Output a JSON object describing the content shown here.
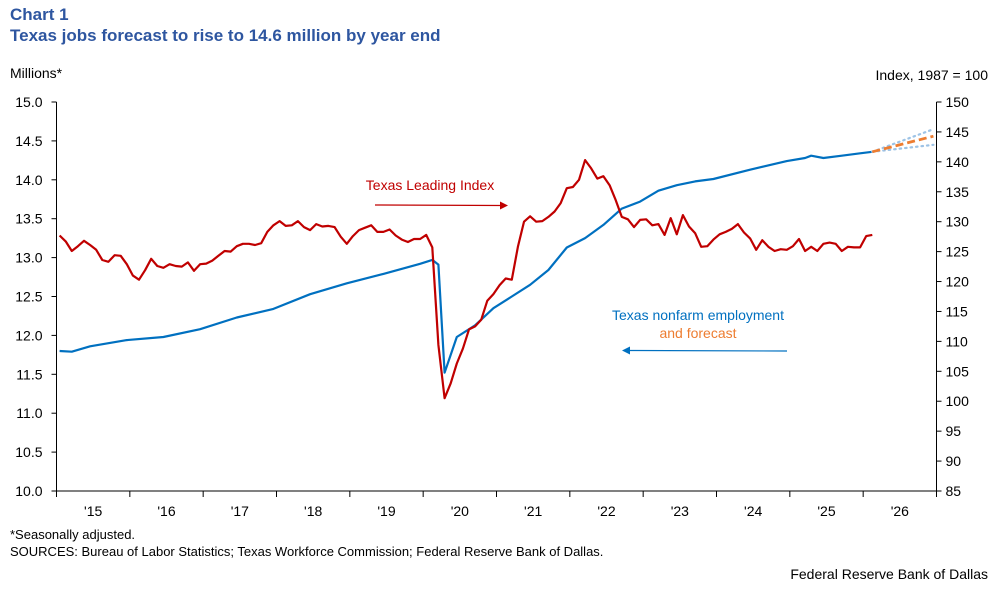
{
  "header": {
    "chart_label": "Chart 1",
    "title": "Texas jobs forecast to rise to 14.6 million by year end"
  },
  "footer": {
    "note": "*Seasonally adjusted.",
    "sources": "SOURCES: Bureau of Labor Statistics; Texas Workforce Commission; Federal Reserve Bank of Dallas.",
    "credit": "Federal Reserve Bank of Dallas"
  },
  "colors": {
    "title": "#2E56A0",
    "employment": "#0070C0",
    "leading_index": "#C00000",
    "forecast": "#ED7D31",
    "forecast_band": "#9DC3E6"
  },
  "chart_data": {
    "type": "line",
    "title": "Texas jobs forecast to rise to 14.6 million by year end",
    "left_axis": {
      "label": "Millions*",
      "range": [
        10.0,
        15.0
      ],
      "ticks": [
        "10.0",
        "10.5",
        "11.0",
        "11.5",
        "12.0",
        "12.5",
        "13.0",
        "13.5",
        "14.0",
        "14.5",
        "15.0"
      ]
    },
    "right_axis": {
      "label": "Index,  1987 = 100",
      "range": [
        85,
        150
      ],
      "ticks": [
        "85",
        "90",
        "95",
        "100",
        "105",
        "110",
        "115",
        "120",
        "125",
        "130",
        "135",
        "140",
        "145",
        "150"
      ]
    },
    "x_axis": {
      "range": [
        "2015-01",
        "2026-12"
      ],
      "tick_labels": [
        "'15",
        "'16",
        "'17",
        "'18",
        "'19",
        "'20",
        "'21",
        "'22",
        "'23",
        "'24",
        "'25",
        "'26"
      ]
    },
    "grid": false,
    "annotations": {
      "leading_index": "Texas  Leading Index",
      "employment_line1": "Texas  nonfarm  employment",
      "employment_line2": "and forecast"
    },
    "series": [
      {
        "name": "Texas nonfarm employment",
        "axis": "left",
        "color": "#0070C0",
        "dates": [
          "2015-01",
          "2015-03",
          "2015-06",
          "2015-12",
          "2016-06",
          "2016-12",
          "2017-06",
          "2017-12",
          "2018-06",
          "2018-12",
          "2019-06",
          "2019-12",
          "2020-02",
          "2020-03",
          "2020-04",
          "2020-06",
          "2020-09",
          "2020-12",
          "2021-03",
          "2021-06",
          "2021-09",
          "2021-12",
          "2022-03",
          "2022-06",
          "2022-09",
          "2022-12",
          "2023-03",
          "2023-06",
          "2023-09",
          "2023-12",
          "2024-06",
          "2024-12",
          "2025-03",
          "2025-04",
          "2025-06",
          "2025-09",
          "2025-12",
          "2026-02"
        ],
        "values": [
          11.8,
          11.79,
          11.86,
          11.94,
          11.98,
          12.08,
          12.23,
          12.34,
          12.53,
          12.67,
          12.79,
          12.92,
          12.97,
          12.91,
          11.52,
          11.98,
          12.13,
          12.35,
          12.5,
          12.65,
          12.84,
          13.13,
          13.25,
          13.42,
          13.63,
          13.72,
          13.86,
          13.93,
          13.98,
          14.01,
          14.13,
          14.24,
          14.28,
          14.31,
          14.28,
          14.31,
          14.34,
          14.36
        ]
      },
      {
        "name": "forecast",
        "axis": "left",
        "color": "#ED7D31",
        "dates": [
          "2026-02",
          "2026-12"
        ],
        "values": [
          14.36,
          14.56
        ],
        "upper": [
          14.36,
          14.65
        ],
        "lower": [
          14.36,
          14.45
        ]
      },
      {
        "name": "Texas Leading Index",
        "axis": "right",
        "color": "#C00000",
        "frequency": "monthly",
        "first_period": "2015-01",
        "values": [
          127.7,
          126.7,
          125.1,
          125.9,
          126.8,
          126.1,
          125.3,
          123.6,
          123.3,
          124.4,
          124.3,
          122.9,
          121.0,
          120.3,
          121.9,
          123.8,
          122.6,
          122.3,
          122.9,
          122.6,
          122.5,
          123.2,
          121.8,
          122.9,
          123.0,
          123.5,
          124.3,
          125.1,
          125.0,
          125.9,
          126.3,
          126.3,
          126.1,
          126.4,
          128.3,
          129.4,
          130.1,
          129.3,
          129.4,
          130.1,
          129.1,
          128.6,
          129.6,
          129.2,
          129.3,
          129.1,
          127.5,
          126.3,
          127.6,
          128.6,
          129.0,
          129.4,
          128.3,
          128.3,
          128.7,
          127.7,
          127.0,
          126.6,
          127.1,
          127.1,
          127.8,
          125.7,
          109.4,
          100.5,
          103.0,
          106.3,
          108.8,
          112.0,
          112.5,
          113.6,
          116.8,
          117.9,
          119.4,
          120.5,
          120.3,
          125.8,
          130.0,
          130.9,
          130.0,
          130.1,
          130.8,
          131.7,
          133.1,
          135.6,
          135.8,
          137.0,
          140.3,
          138.9,
          137.2,
          137.6,
          136.1,
          133.6,
          130.8,
          130.4,
          129.1,
          130.3,
          130.4,
          129.4,
          129.6,
          127.8,
          130.6,
          127.9,
          131.1,
          129.2,
          128.1,
          125.8,
          125.9,
          127.0,
          127.9,
          128.3,
          128.8,
          129.6,
          128.2,
          127.2,
          125.3,
          126.9,
          125.8,
          125.1,
          125.4,
          125.3,
          125.9,
          127.1,
          125.1,
          125.8,
          125.1,
          126.3,
          126.5,
          126.3,
          125.1,
          125.8,
          125.7,
          125.7,
          127.6,
          127.8
        ]
      }
    ]
  }
}
